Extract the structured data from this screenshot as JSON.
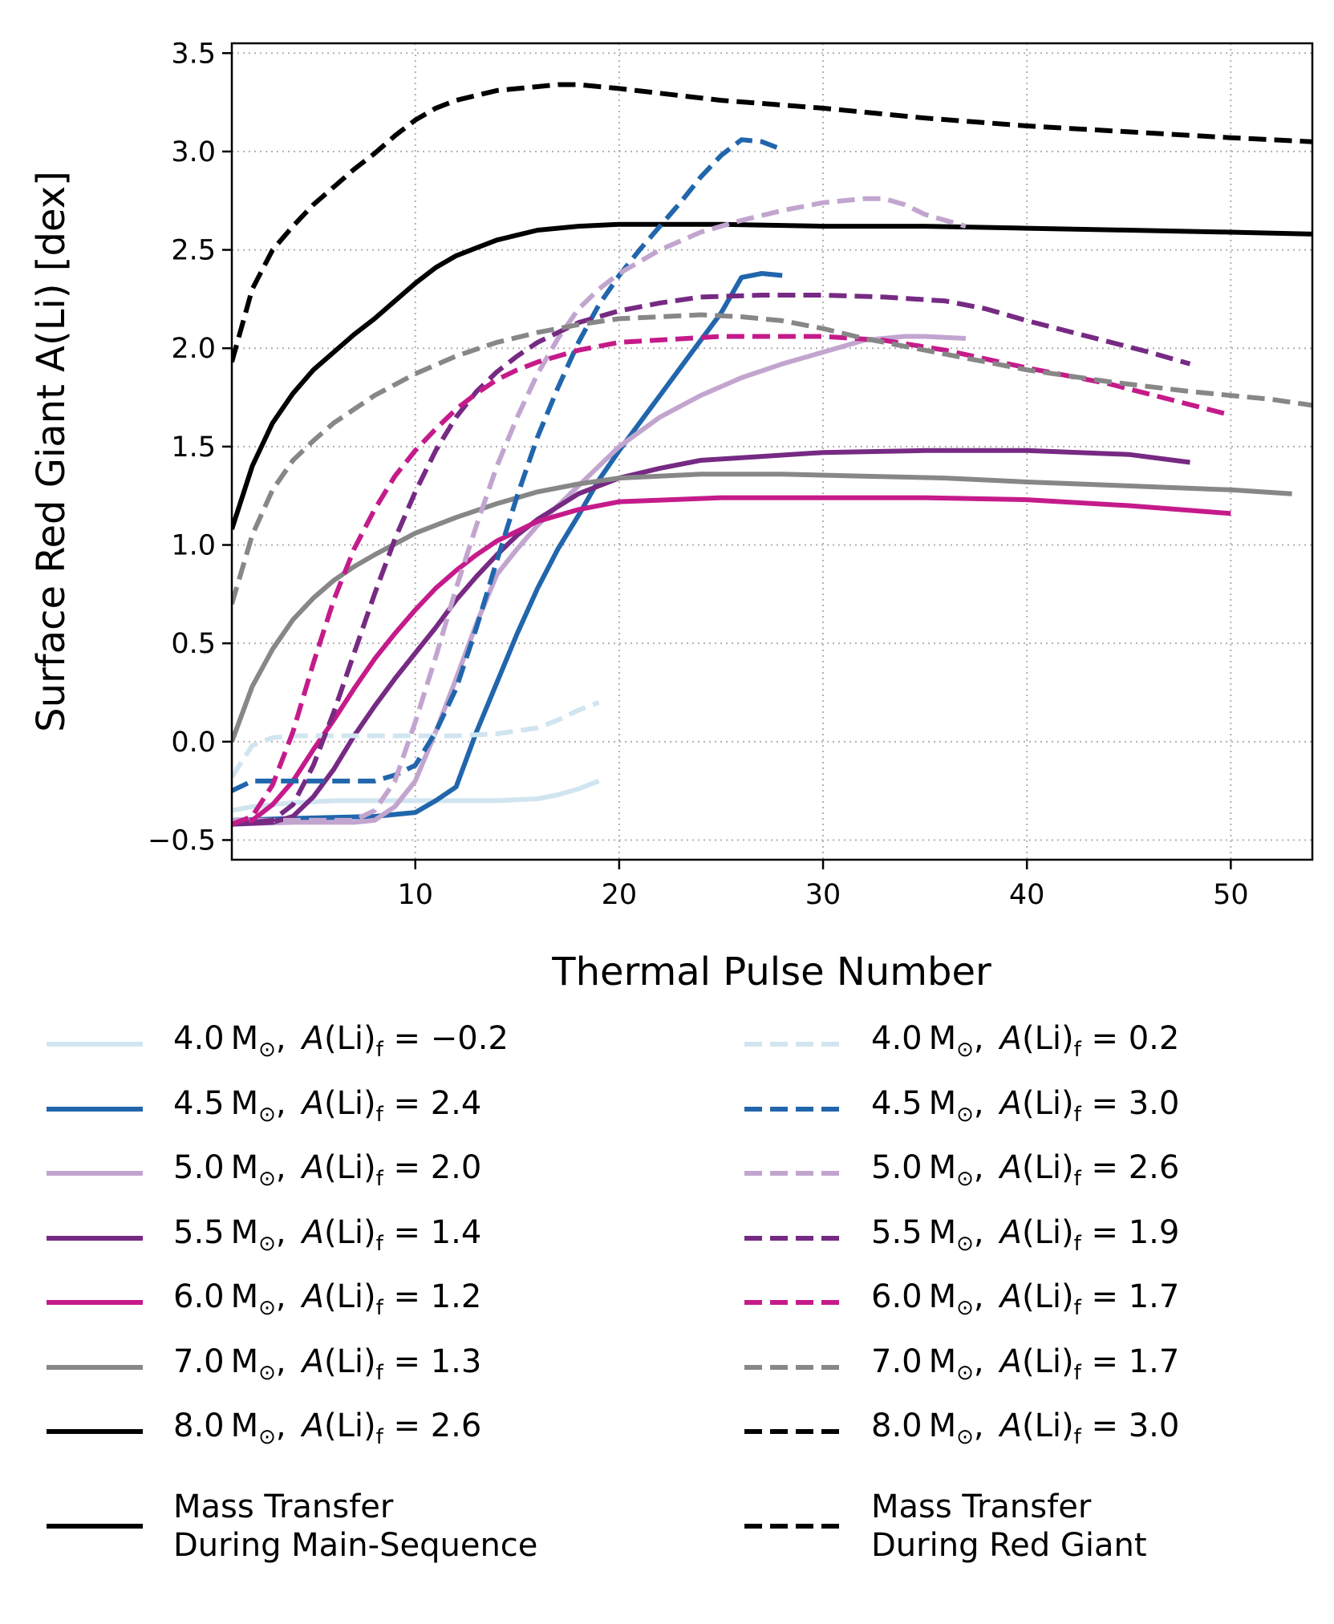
{
  "chart_data": {
    "type": "line",
    "title": "",
    "xlabel": "Thermal Pulse Number",
    "ylabel": "Surface Red Giant A(Li) [dex]",
    "xlim": [
      1,
      54
    ],
    "ylim": [
      -0.6,
      3.55
    ],
    "xticks": [
      10,
      20,
      30,
      40,
      50
    ],
    "xtick_labels": [
      "10",
      "20",
      "30",
      "40",
      "50"
    ],
    "yticks": [
      -0.5,
      0.0,
      0.5,
      1.0,
      1.5,
      2.0,
      2.5,
      3.0,
      3.5
    ],
    "ytick_labels": [
      "−0.5",
      "0.0",
      "0.5",
      "1.0",
      "1.5",
      "2.0",
      "2.5",
      "3.0",
      "3.5"
    ],
    "grid": true,
    "legend_placement": "below plot, two columns",
    "series": [
      {
        "name": "4.0 M⊙, A(Li)f = −0.2",
        "mass": "4.0",
        "alif": "−0.2",
        "scenario": "Mass Transfer During Main-Sequence",
        "color": "#d1e5f0",
        "dashed": false,
        "x": [
          1,
          2,
          3,
          4,
          6,
          8,
          10,
          12,
          14,
          16,
          17,
          18,
          19
        ],
        "y": [
          -0.35,
          -0.33,
          -0.32,
          -0.31,
          -0.3,
          -0.3,
          -0.3,
          -0.3,
          -0.3,
          -0.29,
          -0.27,
          -0.24,
          -0.2
        ]
      },
      {
        "name": "4.5 M⊙, A(Li)f = 2.4",
        "mass": "4.5",
        "alif": "2.4",
        "scenario": "Mass Transfer During Main-Sequence",
        "color": "#2166ac",
        "dashed": false,
        "x": [
          1,
          4,
          8,
          10,
          11,
          12,
          13,
          14,
          15,
          16,
          17,
          18,
          19,
          20,
          21,
          22,
          23,
          24,
          25,
          26,
          27,
          28
        ],
        "y": [
          -0.4,
          -0.39,
          -0.38,
          -0.36,
          -0.3,
          -0.23,
          0.05,
          0.3,
          0.55,
          0.78,
          0.98,
          1.15,
          1.33,
          1.48,
          1.62,
          1.76,
          1.9,
          2.04,
          2.18,
          2.36,
          2.38,
          2.37
        ]
      },
      {
        "name": "5.0 M⊙, A(Li)f = 2.0",
        "mass": "5.0",
        "alif": "2.0",
        "scenario": "Mass Transfer During Main-Sequence",
        "color": "#c2a5cf",
        "dashed": false,
        "x": [
          1,
          4,
          7,
          8,
          9,
          10,
          11,
          12,
          13,
          14,
          15,
          16,
          17,
          18,
          19,
          20,
          22,
          24,
          26,
          28,
          30,
          32,
          34,
          35,
          37
        ],
        "y": [
          -0.42,
          -0.41,
          -0.41,
          -0.4,
          -0.33,
          -0.2,
          0.05,
          0.32,
          0.6,
          0.85,
          0.98,
          1.1,
          1.2,
          1.3,
          1.4,
          1.5,
          1.65,
          1.76,
          1.85,
          1.92,
          1.98,
          2.04,
          2.06,
          2.06,
          2.05
        ]
      },
      {
        "name": "5.5 M⊙, A(Li)f = 1.4",
        "mass": "5.5",
        "alif": "1.4",
        "scenario": "Mass Transfer During Main-Sequence",
        "color": "#762a83",
        "dashed": false,
        "x": [
          1,
          3,
          4,
          5,
          6,
          7,
          8,
          9,
          10,
          11,
          12,
          13,
          14,
          15,
          16,
          18,
          20,
          22,
          24,
          27,
          30,
          35,
          40,
          45,
          48
        ],
        "y": [
          -0.42,
          -0.41,
          -0.38,
          -0.28,
          -0.14,
          0.03,
          0.18,
          0.32,
          0.45,
          0.58,
          0.72,
          0.84,
          0.95,
          1.05,
          1.13,
          1.26,
          1.34,
          1.39,
          1.43,
          1.45,
          1.47,
          1.48,
          1.48,
          1.46,
          1.42
        ]
      },
      {
        "name": "6.0 M⊙, A(Li)f = 1.2",
        "mass": "6.0",
        "alif": "1.2",
        "scenario": "Mass Transfer During Main-Sequence",
        "color": "#c51b8a",
        "dashed": false,
        "x": [
          1,
          2,
          3,
          4,
          5,
          6,
          7,
          8,
          9,
          10,
          11,
          12,
          13,
          14,
          16,
          18,
          20,
          25,
          30,
          35,
          40,
          45,
          50
        ],
        "y": [
          -0.42,
          -0.4,
          -0.32,
          -0.2,
          -0.04,
          0.11,
          0.27,
          0.42,
          0.55,
          0.67,
          0.78,
          0.87,
          0.95,
          1.02,
          1.12,
          1.18,
          1.22,
          1.24,
          1.24,
          1.24,
          1.23,
          1.2,
          1.16
        ]
      },
      {
        "name": "7.0 M⊙, A(Li)f = 1.3",
        "mass": "7.0",
        "alif": "1.3",
        "scenario": "Mass Transfer During Main-Sequence",
        "color": "#878787",
        "dashed": false,
        "x": [
          1,
          2,
          3,
          4,
          5,
          6,
          7,
          8,
          10,
          12,
          14,
          16,
          18,
          20,
          24,
          28,
          32,
          36,
          40,
          45,
          50,
          53
        ],
        "y": [
          0.0,
          0.28,
          0.47,
          0.62,
          0.73,
          0.82,
          0.89,
          0.95,
          1.06,
          1.14,
          1.21,
          1.27,
          1.31,
          1.34,
          1.36,
          1.36,
          1.35,
          1.34,
          1.32,
          1.3,
          1.28,
          1.26
        ]
      },
      {
        "name": "8.0 M⊙, A(Li)f = 2.6",
        "mass": "8.0",
        "alif": "2.6",
        "scenario": "Mass Transfer During Main-Sequence",
        "color": "#000000",
        "dashed": false,
        "x": [
          1,
          2,
          3,
          4,
          5,
          6,
          7,
          8,
          9,
          10,
          11,
          12,
          13,
          14,
          16,
          18,
          20,
          25,
          30,
          35,
          40,
          45,
          50,
          54
        ],
        "y": [
          1.08,
          1.4,
          1.62,
          1.77,
          1.89,
          1.98,
          2.07,
          2.15,
          2.24,
          2.33,
          2.41,
          2.47,
          2.51,
          2.55,
          2.6,
          2.62,
          2.63,
          2.63,
          2.62,
          2.62,
          2.61,
          2.6,
          2.59,
          2.58
        ]
      },
      {
        "name": "4.0 M⊙, A(Li)f = 0.2",
        "mass": "4.0",
        "alif": "0.2",
        "scenario": "Mass Transfer During Red Giant",
        "color": "#d1e5f0",
        "dashed": true,
        "x": [
          1,
          2,
          3,
          4,
          6,
          8,
          10,
          12,
          14,
          16,
          17,
          18,
          19
        ],
        "y": [
          -0.18,
          -0.02,
          0.02,
          0.03,
          0.03,
          0.03,
          0.03,
          0.03,
          0.04,
          0.07,
          0.11,
          0.16,
          0.2
        ]
      },
      {
        "name": "4.5 M⊙, A(Li)f = 3.0",
        "mass": "4.5",
        "alif": "3.0",
        "scenario": "Mass Transfer During Red Giant",
        "color": "#2166ac",
        "dashed": true,
        "x": [
          1,
          2,
          4,
          8,
          9,
          10,
          11,
          12,
          13,
          14,
          15,
          16,
          17,
          18,
          19,
          20,
          21,
          22,
          23,
          24,
          25,
          26,
          27,
          28
        ],
        "y": [
          -0.25,
          -0.2,
          -0.2,
          -0.2,
          -0.17,
          -0.12,
          0.05,
          0.27,
          0.58,
          0.92,
          1.25,
          1.55,
          1.8,
          2.03,
          2.22,
          2.37,
          2.5,
          2.62,
          2.74,
          2.87,
          2.98,
          3.06,
          3.05,
          3.01
        ]
      },
      {
        "name": "5.0 M⊙, A(Li)f = 2.6",
        "mass": "5.0",
        "alif": "2.6",
        "scenario": "Mass Transfer During Red Giant",
        "color": "#c2a5cf",
        "dashed": true,
        "x": [
          1,
          4,
          7,
          8,
          9,
          10,
          11,
          12,
          13,
          14,
          15,
          16,
          17,
          18,
          19,
          20,
          22,
          24,
          26,
          28,
          30,
          32,
          33,
          34,
          35,
          37
        ],
        "y": [
          -0.4,
          -0.4,
          -0.4,
          -0.35,
          -0.2,
          0.1,
          0.43,
          0.78,
          1.1,
          1.4,
          1.65,
          1.87,
          2.05,
          2.2,
          2.3,
          2.38,
          2.5,
          2.59,
          2.65,
          2.7,
          2.74,
          2.76,
          2.76,
          2.73,
          2.68,
          2.62
        ]
      },
      {
        "name": "5.5 M⊙, A(Li)f = 1.9",
        "mass": "5.5",
        "alif": "1.9",
        "scenario": "Mass Transfer During Red Giant",
        "color": "#762a83",
        "dashed": true,
        "x": [
          1,
          3,
          4,
          5,
          6,
          7,
          8,
          9,
          10,
          11,
          12,
          13,
          14,
          15,
          16,
          18,
          20,
          22,
          24,
          27,
          30,
          33,
          36,
          38,
          40,
          43,
          46,
          48
        ],
        "y": [
          -0.42,
          -0.4,
          -0.32,
          -0.12,
          0.15,
          0.45,
          0.75,
          1.03,
          1.27,
          1.48,
          1.65,
          1.78,
          1.88,
          1.96,
          2.03,
          2.13,
          2.19,
          2.23,
          2.26,
          2.27,
          2.27,
          2.26,
          2.24,
          2.2,
          2.14,
          2.06,
          1.98,
          1.92
        ]
      },
      {
        "name": "6.0 M⊙, A(Li)f = 1.7",
        "mass": "6.0",
        "alif": "1.7",
        "scenario": "Mass Transfer During Red Giant",
        "color": "#c51b8a",
        "dashed": true,
        "x": [
          1,
          2,
          3,
          4,
          5,
          6,
          7,
          8,
          9,
          10,
          11,
          12,
          13,
          14,
          15,
          16,
          18,
          20,
          25,
          30,
          33,
          36,
          40,
          44,
          47,
          50
        ],
        "y": [
          -0.42,
          -0.38,
          -0.22,
          0.05,
          0.4,
          0.72,
          0.98,
          1.18,
          1.35,
          1.48,
          1.59,
          1.69,
          1.77,
          1.84,
          1.89,
          1.93,
          1.99,
          2.03,
          2.06,
          2.06,
          2.04,
          1.99,
          1.9,
          1.82,
          1.74,
          1.66
        ]
      },
      {
        "name": "7.0 M⊙, A(Li)f = 1.7",
        "mass": "7.0",
        "alif": "1.7",
        "scenario": "Mass Transfer During Red Giant",
        "color": "#878787",
        "dashed": true,
        "x": [
          1,
          2,
          3,
          4,
          5,
          6,
          7,
          8,
          10,
          12,
          14,
          16,
          18,
          20,
          22,
          24,
          26,
          28,
          30,
          32,
          36,
          40,
          44,
          48,
          52,
          54
        ],
        "y": [
          0.7,
          1.05,
          1.28,
          1.43,
          1.53,
          1.62,
          1.69,
          1.76,
          1.87,
          1.96,
          2.03,
          2.08,
          2.12,
          2.15,
          2.16,
          2.17,
          2.16,
          2.14,
          2.1,
          2.05,
          1.97,
          1.89,
          1.83,
          1.78,
          1.74,
          1.71
        ]
      },
      {
        "name": "8.0 M⊙, A(Li)f = 3.0",
        "mass": "8.0",
        "alif": "3.0",
        "scenario": "Mass Transfer During Red Giant",
        "color": "#000000",
        "dashed": true,
        "x": [
          1,
          2,
          3,
          4,
          5,
          6,
          7,
          8,
          9,
          10,
          11,
          12,
          14,
          16,
          17,
          18,
          20,
          25,
          30,
          35,
          40,
          45,
          50,
          54
        ],
        "y": [
          1.93,
          2.3,
          2.5,
          2.62,
          2.73,
          2.82,
          2.91,
          2.99,
          3.08,
          3.16,
          3.22,
          3.26,
          3.31,
          3.33,
          3.34,
          3.34,
          3.32,
          3.26,
          3.22,
          3.17,
          3.13,
          3.1,
          3.07,
          3.05
        ]
      }
    ]
  },
  "legend": {
    "solid_items": [
      {
        "mass": "4.0",
        "alif": "−0.2",
        "color": "#d1e5f0"
      },
      {
        "mass": "4.5",
        "alif": "2.4",
        "color": "#2166ac"
      },
      {
        "mass": "5.0",
        "alif": "2.0",
        "color": "#c2a5cf"
      },
      {
        "mass": "5.5",
        "alif": "1.4",
        "color": "#762a83"
      },
      {
        "mass": "6.0",
        "alif": "1.2",
        "color": "#c51b8a"
      },
      {
        "mass": "7.0",
        "alif": "1.3",
        "color": "#878787"
      },
      {
        "mass": "8.0",
        "alif": "2.6",
        "color": "#000000"
      }
    ],
    "dashed_items": [
      {
        "mass": "4.0",
        "alif": "0.2",
        "color": "#d1e5f0"
      },
      {
        "mass": "4.5",
        "alif": "3.0",
        "color": "#2166ac"
      },
      {
        "mass": "5.0",
        "alif": "2.6",
        "color": "#c2a5cf"
      },
      {
        "mass": "5.5",
        "alif": "1.9",
        "color": "#762a83"
      },
      {
        "mass": "6.0",
        "alif": "1.7",
        "color": "#c51b8a"
      },
      {
        "mass": "7.0",
        "alif": "1.7",
        "color": "#878787"
      },
      {
        "mass": "8.0",
        "alif": "3.0",
        "color": "#000000"
      }
    ],
    "solid_scenario": "Mass Transfer\nDuring Main-Sequence",
    "dashed_scenario": "Mass Transfer\nDuring Red Giant"
  }
}
